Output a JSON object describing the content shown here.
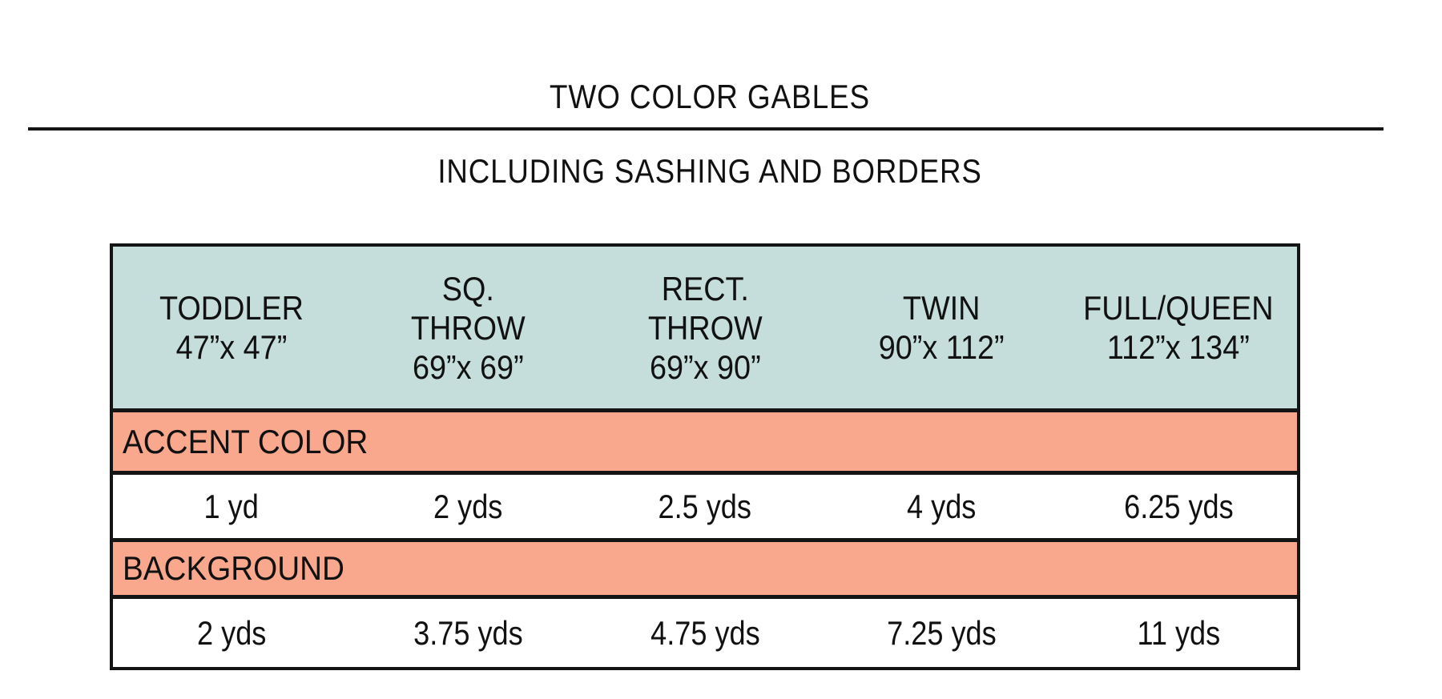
{
  "title": "TWO COLOR GABLES",
  "subtitle": "INCLUDING SASHING AND BORDERS",
  "colors": {
    "header_bg": "#c6dedb",
    "band_bg": "#f9a88e",
    "border": "#141414",
    "text": "#111111"
  },
  "table": {
    "columns": [
      [
        "TODDLER",
        "47”x 47”"
      ],
      [
        "SQ.",
        "THROW",
        "69”x 69”"
      ],
      [
        "RECT.",
        "THROW",
        "69”x 90”"
      ],
      [
        "TWIN",
        "90”x 112”"
      ],
      [
        "FULL/QUEEN",
        "112”x 134”"
      ]
    ],
    "sections": [
      {
        "label": "ACCENT COLOR",
        "values": [
          "1 yd",
          "2 yds",
          "2.5 yds",
          "4 yds",
          "6.25 yds"
        ]
      },
      {
        "label": "BACKGROUND",
        "values": [
          "2 yds",
          "3.75 yds",
          "4.75 yds",
          "7.25 yds",
          "11 yds"
        ]
      }
    ]
  }
}
